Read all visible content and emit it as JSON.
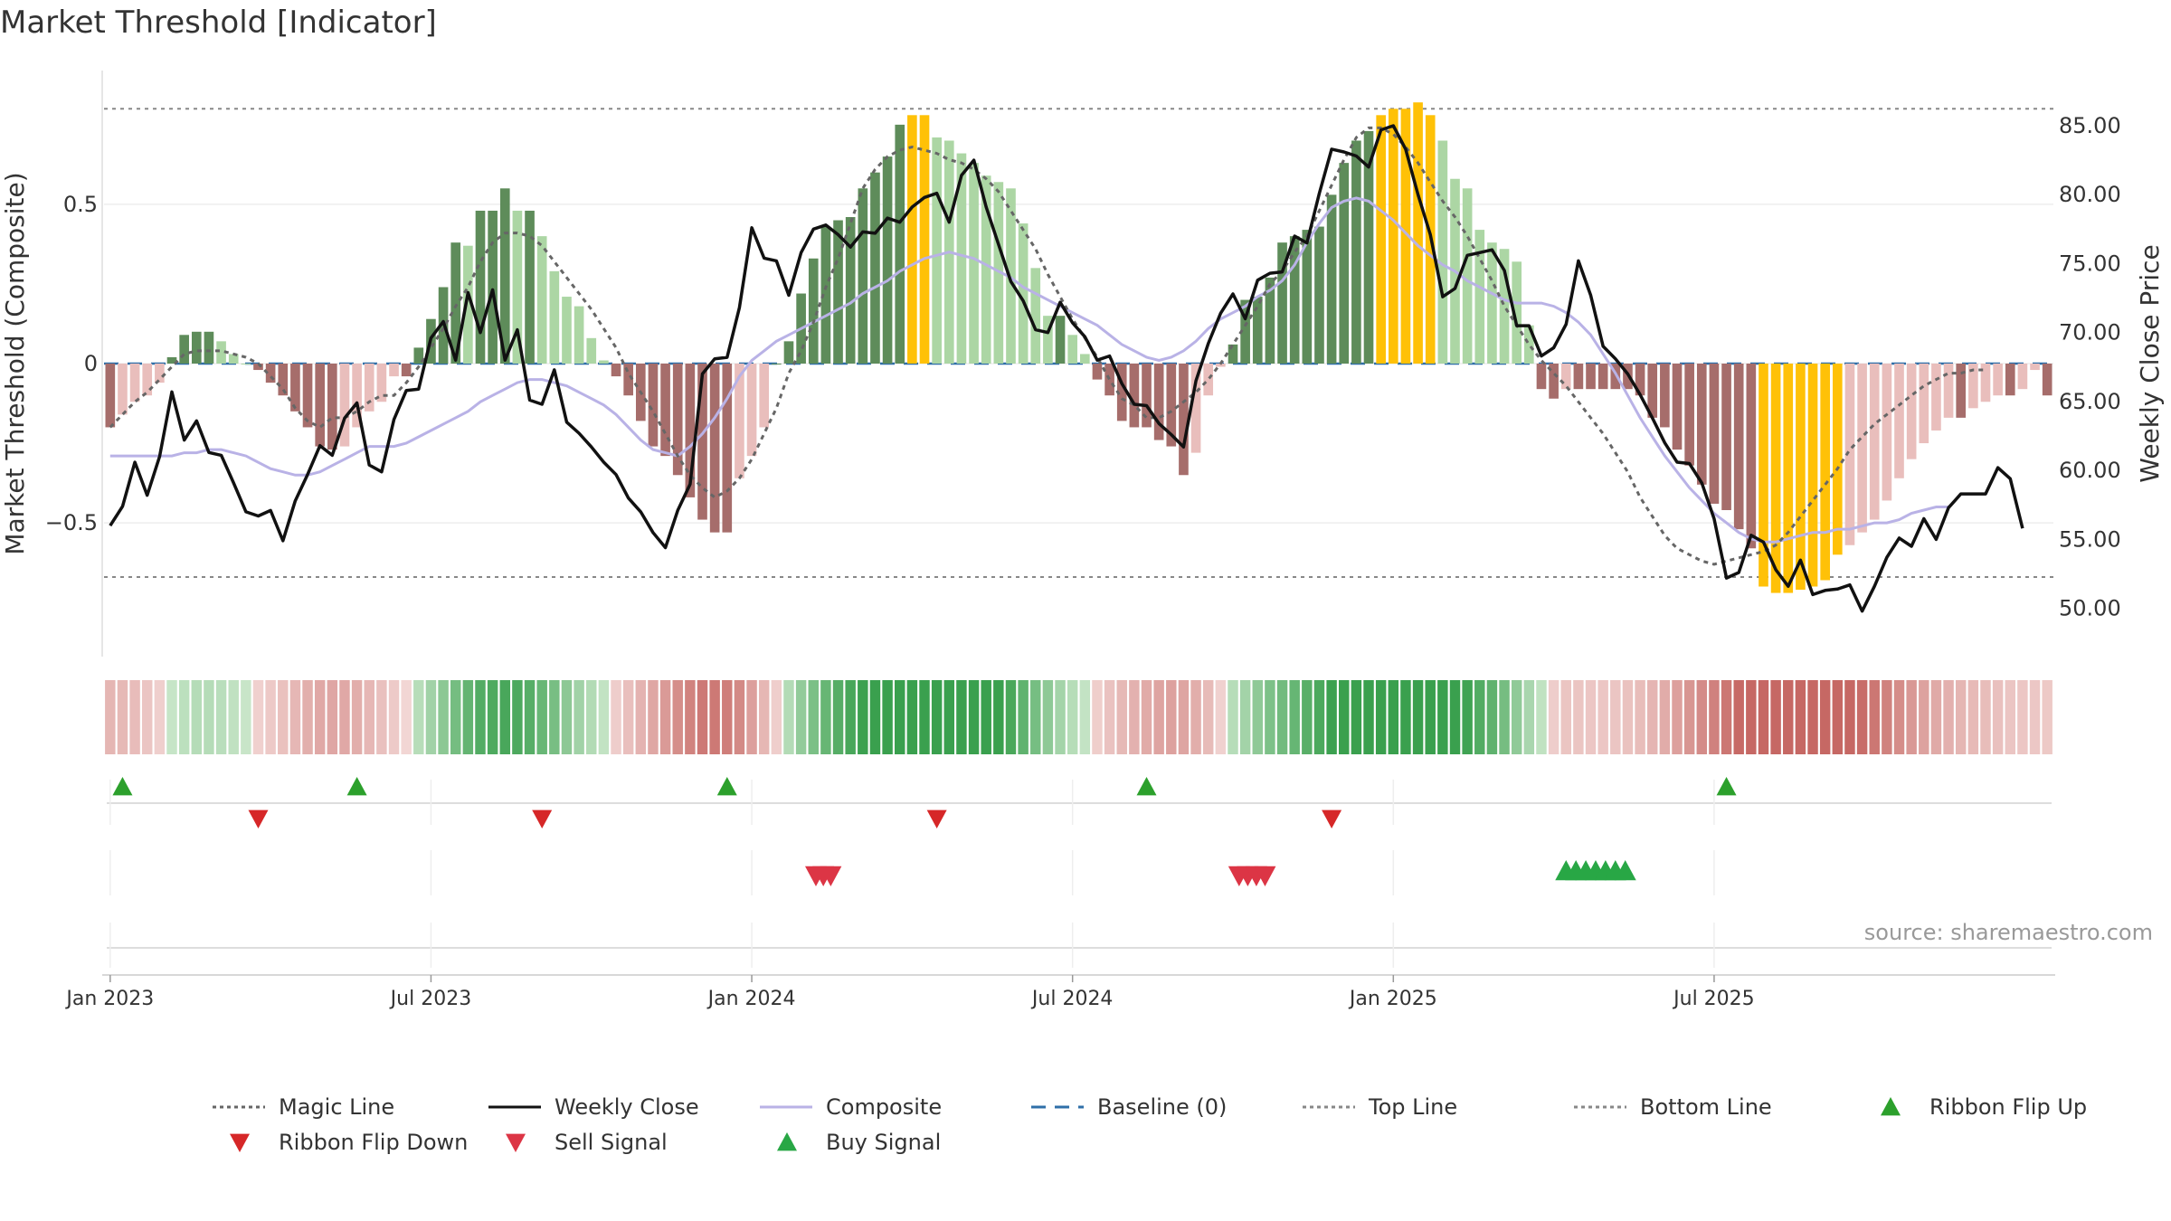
{
  "chart_data": {
    "type": "bar",
    "title": "Market Threshold [Indicator]",
    "ylabel_left": "Market Threshold (Composite)",
    "ylabel_right": "Weekly Close Price",
    "source": "source: sharemaestro.com",
    "left_ylim": [
      -0.92,
      0.92
    ],
    "right_ylim": [
      46.5,
      89.0
    ],
    "left_ticks": [
      {
        "v": 0.5,
        "label": "0.5"
      },
      {
        "v": 0,
        "label": "0"
      },
      {
        "v": -0.5,
        "label": "−0.5"
      }
    ],
    "right_ticks": [
      {
        "v": 50,
        "label": "50.00"
      },
      {
        "v": 55,
        "label": "55.00"
      },
      {
        "v": 60,
        "label": "60.00"
      },
      {
        "v": 65,
        "label": "65.00"
      },
      {
        "v": 70,
        "label": "70.00"
      },
      {
        "v": 75,
        "label": "75.00"
      },
      {
        "v": 80,
        "label": "80.00"
      },
      {
        "v": 85,
        "label": "85.00"
      }
    ],
    "x_ticks": [
      {
        "week": 1,
        "label": "Jan 2023"
      },
      {
        "week": 27,
        "label": "Jul 2023"
      },
      {
        "week": 53,
        "label": "Jan 2024"
      },
      {
        "week": 79,
        "label": "Jul 2024"
      },
      {
        "week": 105,
        "label": "Jan 2025"
      },
      {
        "week": 131,
        "label": "Jul 2025"
      }
    ],
    "top_line": 0.8,
    "bottom_line": -0.67,
    "composite": [
      -0.2,
      -0.16,
      -0.12,
      -0.1,
      -0.06,
      0.02,
      0.09,
      0.1,
      0.1,
      0.07,
      0.03,
      0.0,
      -0.02,
      -0.06,
      -0.1,
      -0.15,
      -0.2,
      -0.26,
      -0.27,
      -0.26,
      -0.2,
      -0.15,
      -0.12,
      -0.04,
      -0.04,
      0.05,
      0.14,
      0.24,
      0.38,
      0.37,
      0.48,
      0.48,
      0.55,
      0.48,
      0.48,
      0.4,
      0.29,
      0.21,
      0.18,
      0.08,
      0.01,
      -0.04,
      -0.1,
      -0.18,
      -0.26,
      -0.29,
      -0.35,
      -0.42,
      -0.49,
      -0.53,
      -0.53,
      -0.36,
      -0.29,
      -0.2,
      0.0,
      0.07,
      0.22,
      0.33,
      0.43,
      0.45,
      0.46,
      0.55,
      0.6,
      0.65,
      0.75,
      0.78,
      0.78,
      0.71,
      0.7,
      0.66,
      0.63,
      0.59,
      0.57,
      0.55,
      0.44,
      0.3,
      0.15,
      0.15,
      0.09,
      0.03,
      -0.05,
      -0.1,
      -0.18,
      -0.2,
      -0.2,
      -0.24,
      -0.26,
      -0.35,
      -0.28,
      -0.1,
      -0.01,
      0.06,
      0.2,
      0.21,
      0.27,
      0.38,
      0.4,
      0.42,
      0.43,
      0.53,
      0.63,
      0.7,
      0.73,
      0.78,
      0.8,
      0.8,
      0.82,
      0.78,
      0.7,
      0.58,
      0.55,
      0.42,
      0.38,
      0.36,
      0.32,
      0.12,
      -0.08,
      -0.11,
      -0.08,
      -0.08,
      -0.08,
      -0.08,
      -0.08,
      -0.08,
      -0.1,
      -0.17,
      -0.2,
      -0.27,
      -0.32,
      -0.38,
      -0.44,
      -0.46,
      -0.52,
      -0.58,
      -0.7,
      -0.72,
      -0.72,
      -0.71,
      -0.7,
      -0.68,
      -0.6,
      -0.57,
      -0.53,
      -0.49,
      -0.43,
      -0.36,
      -0.3,
      -0.25,
      -0.21,
      -0.17,
      -0.17,
      -0.14,
      -0.12,
      -0.1,
      -0.1,
      -0.08,
      -0.02,
      -0.1
    ],
    "magic_line": [
      -0.2,
      -0.16,
      -0.12,
      -0.09,
      -0.05,
      -0.01,
      0.03,
      0.04,
      0.04,
      0.04,
      0.03,
      0.02,
      0.0,
      -0.04,
      -0.08,
      -0.14,
      -0.18,
      -0.2,
      -0.17,
      -0.17,
      -0.15,
      -0.12,
      -0.1,
      -0.1,
      -0.06,
      -0.01,
      0.05,
      0.11,
      0.18,
      0.24,
      0.32,
      0.38,
      0.41,
      0.41,
      0.4,
      0.37,
      0.32,
      0.27,
      0.22,
      0.17,
      0.11,
      0.05,
      -0.03,
      -0.09,
      -0.15,
      -0.22,
      -0.29,
      -0.35,
      -0.39,
      -0.42,
      -0.4,
      -0.36,
      -0.3,
      -0.22,
      -0.14,
      -0.03,
      0.04,
      0.13,
      0.24,
      0.33,
      0.44,
      0.55,
      0.61,
      0.65,
      0.67,
      0.68,
      0.67,
      0.66,
      0.64,
      0.63,
      0.61,
      0.58,
      0.54,
      0.48,
      0.42,
      0.36,
      0.28,
      0.21,
      0.14,
      0.08,
      0.02,
      -0.05,
      -0.11,
      -0.13,
      -0.17,
      -0.17,
      -0.15,
      -0.12,
      -0.09,
      -0.05,
      0.0,
      0.06,
      0.12,
      0.18,
      0.25,
      0.29,
      0.35,
      0.4,
      0.48,
      0.56,
      0.64,
      0.71,
      0.74,
      0.74,
      0.72,
      0.68,
      0.63,
      0.57,
      0.51,
      0.46,
      0.4,
      0.33,
      0.26,
      0.18,
      0.12,
      0.06,
      0.01,
      -0.03,
      -0.07,
      -0.12,
      -0.17,
      -0.22,
      -0.28,
      -0.34,
      -0.42,
      -0.48,
      -0.54,
      -0.58,
      -0.6,
      -0.62,
      -0.63,
      -0.62,
      -0.61,
      -0.6,
      -0.59,
      -0.57,
      -0.53,
      -0.48,
      -0.43,
      -0.38,
      -0.33,
      -0.27,
      -0.23,
      -0.19,
      -0.16,
      -0.13,
      -0.1,
      -0.07,
      -0.05,
      -0.03,
      -0.03,
      -0.02,
      -0.02
    ],
    "composite_line": [
      -0.29,
      -0.29,
      -0.29,
      -0.29,
      -0.29,
      -0.29,
      -0.28,
      -0.28,
      -0.27,
      -0.27,
      -0.28,
      -0.29,
      -0.31,
      -0.33,
      -0.34,
      -0.35,
      -0.35,
      -0.34,
      -0.32,
      -0.3,
      -0.28,
      -0.26,
      -0.26,
      -0.26,
      -0.25,
      -0.23,
      -0.21,
      -0.19,
      -0.17,
      -0.15,
      -0.12,
      -0.1,
      -0.08,
      -0.06,
      -0.05,
      -0.05,
      -0.06,
      -0.07,
      -0.09,
      -0.11,
      -0.13,
      -0.16,
      -0.2,
      -0.24,
      -0.27,
      -0.28,
      -0.29,
      -0.26,
      -0.22,
      -0.17,
      -0.11,
      -0.04,
      0.01,
      0.04,
      0.07,
      0.09,
      0.11,
      0.13,
      0.15,
      0.17,
      0.19,
      0.22,
      0.24,
      0.26,
      0.29,
      0.31,
      0.33,
      0.34,
      0.35,
      0.34,
      0.33,
      0.31,
      0.29,
      0.27,
      0.24,
      0.22,
      0.2,
      0.18,
      0.16,
      0.14,
      0.12,
      0.09,
      0.06,
      0.04,
      0.02,
      0.01,
      0.02,
      0.04,
      0.07,
      0.11,
      0.14,
      0.16,
      0.18,
      0.21,
      0.23,
      0.26,
      0.31,
      0.38,
      0.44,
      0.49,
      0.51,
      0.52,
      0.51,
      0.48,
      0.45,
      0.41,
      0.37,
      0.34,
      0.31,
      0.29,
      0.26,
      0.24,
      0.22,
      0.2,
      0.19,
      0.19,
      0.19,
      0.18,
      0.16,
      0.13,
      0.09,
      0.03,
      -0.03,
      -0.1,
      -0.17,
      -0.23,
      -0.29,
      -0.34,
      -0.39,
      -0.43,
      -0.47,
      -0.5,
      -0.53,
      -0.55,
      -0.56,
      -0.56,
      -0.55,
      -0.54,
      -0.53,
      -0.53,
      -0.52,
      -0.52,
      -0.51,
      -0.5,
      -0.5,
      -0.49,
      -0.47,
      -0.46,
      -0.45,
      -0.45
    ],
    "weekly_close": [
      56.0,
      57.4,
      60.6,
      58.2,
      61.0,
      65.7,
      62.2,
      63.6,
      61.3,
      61.1,
      59.1,
      57.0,
      56.7,
      57.1,
      54.9,
      57.8,
      59.7,
      61.8,
      61.1,
      63.8,
      64.9,
      60.4,
      59.9,
      63.7,
      65.8,
      65.9,
      69.6,
      70.8,
      68.0,
      72.9,
      70.0,
      73.1,
      68.0,
      70.2,
      65.1,
      64.8,
      67.3,
      63.5,
      62.7,
      61.7,
      60.6,
      59.7,
      58.0,
      57.0,
      55.5,
      54.4,
      57.1,
      59.0,
      67.0,
      68.1,
      68.2,
      71.8,
      77.6,
      75.4,
      75.2,
      72.7,
      75.8,
      77.5,
      77.8,
      77.1,
      76.2,
      77.3,
      77.2,
      78.3,
      78.0,
      79.1,
      79.8,
      80.1,
      78.0,
      81.4,
      82.5,
      79.1,
      76.4,
      73.7,
      72.3,
      70.2,
      70.0,
      72.2,
      70.7,
      69.7,
      68.0,
      68.3,
      66.3,
      64.8,
      64.7,
      63.4,
      62.6,
      61.7,
      66.5,
      69.2,
      71.4,
      72.8,
      71.0,
      73.8,
      74.3,
      74.4,
      77.0,
      76.5,
      80.1,
      83.3,
      83.1,
      82.8,
      82.0,
      84.7,
      85.0,
      83.3,
      80.0,
      77.1,
      72.6,
      73.2,
      75.6,
      75.8,
      76.0,
      74.5,
      70.5,
      70.5,
      68.3,
      68.9,
      70.6,
      75.2,
      72.7,
      69.0,
      68.1,
      67.0,
      65.5,
      63.8,
      62.0,
      60.6,
      60.5,
      59.1,
      56.5,
      52.2,
      52.6,
      55.3,
      54.8,
      52.8,
      51.6,
      53.5,
      51.0,
      51.3,
      51.4,
      51.7,
      49.8,
      51.6,
      53.7,
      55.1,
      54.5,
      56.5,
      55.0,
      57.3,
      58.3,
      58.3,
      58.3,
      60.2,
      59.4,
      55.8
    ],
    "signals": {
      "ribbon_flip_up_weeks": [
        2,
        21,
        51,
        85,
        132
      ],
      "ribbon_flip_down_weeks": [
        13,
        36,
        68,
        100
      ],
      "sell_signal_weeks": [
        58.2,
        58.8,
        59.4,
        92.5,
        93.2,
        93.9,
        94.6
      ],
      "buy_signal_weeks": [
        119,
        119.8,
        120.6,
        121.4,
        122.2,
        123,
        123.8
      ]
    },
    "legend": [
      {
        "label": "Magic Line",
        "color": "#666666",
        "style": "dotted"
      },
      {
        "label": "Weekly Close",
        "color": "#111111",
        "style": "solid"
      },
      {
        "label": "Composite",
        "color": "#b9b2e6",
        "style": "solid"
      },
      {
        "label": "Baseline (0)",
        "color": "#2f6fa8",
        "style": "dashed"
      },
      {
        "label": "Top Line",
        "color": "#888888",
        "style": "dotted"
      },
      {
        "label": "Bottom Line",
        "color": "#888888",
        "style": "dotted"
      },
      {
        "label": "Ribbon Flip Up",
        "color": "#2ca02c",
        "style": "marker-up"
      },
      {
        "label": "Ribbon Flip Down",
        "color": "#d62728",
        "style": "marker-down"
      },
      {
        "label": "Sell Signal",
        "color": "#dc3545",
        "style": "marker-down"
      },
      {
        "label": "Buy Signal",
        "color": "#28a745",
        "style": "marker-up"
      }
    ],
    "colors": {
      "dark_green": "#5e8c5a",
      "light_green": "#acd6a4",
      "dark_red": "#a66d6b",
      "light_red": "#e9bebc",
      "gold": "#ffc107",
      "baseline": "#2f6fa8",
      "magic": "#666666",
      "close": "#111111",
      "composite_line": "#b9b2e6",
      "grid": "#eeeeee"
    }
  }
}
